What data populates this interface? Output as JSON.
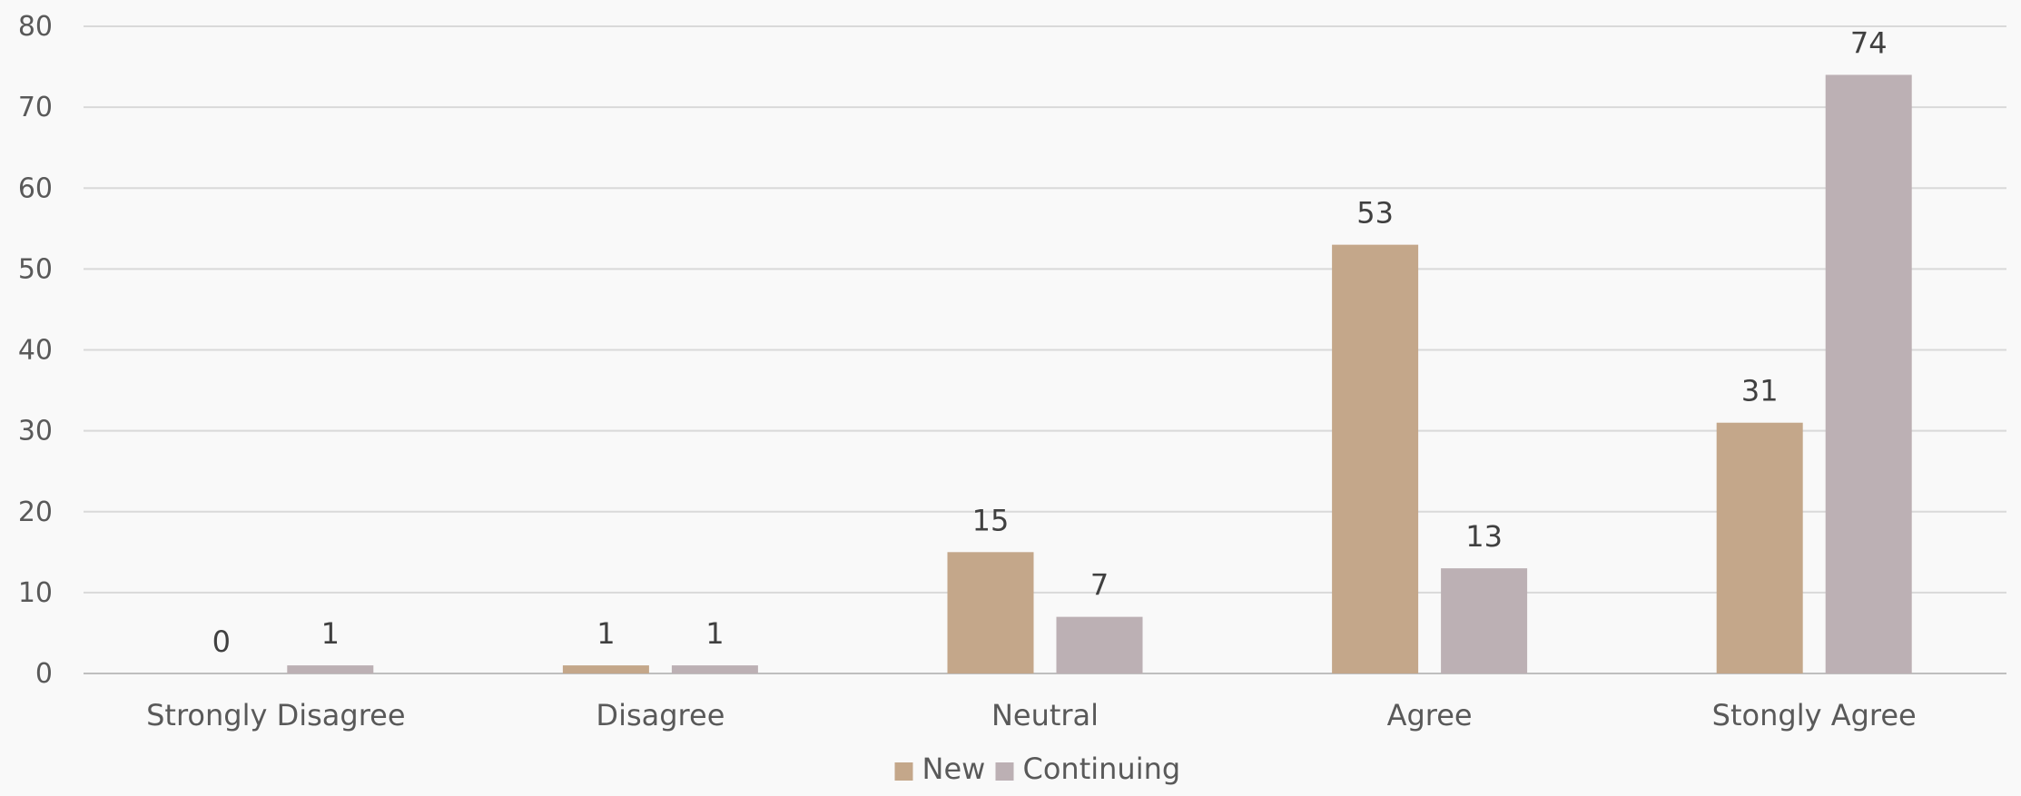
{
  "chart_data": {
    "type": "bar",
    "title": "",
    "xlabel": "",
    "ylabel": "",
    "categories": [
      "Strongly Disagree",
      "Disagree",
      "Neutral",
      "Agree",
      "Stongly Agree"
    ],
    "series": [
      {
        "name": "New",
        "color": "#c4a78a",
        "values": [
          0,
          1,
          15,
          53,
          31
        ]
      },
      {
        "name": "Continuing",
        "color": "#bcb0b4",
        "values": [
          1,
          1,
          7,
          13,
          74
        ]
      }
    ],
    "ylim": [
      0,
      80
    ],
    "yticks": [
      0,
      10,
      20,
      30,
      40,
      50,
      60,
      70,
      80
    ],
    "grid": true,
    "data_labels": true,
    "legend_position": "bottom"
  }
}
